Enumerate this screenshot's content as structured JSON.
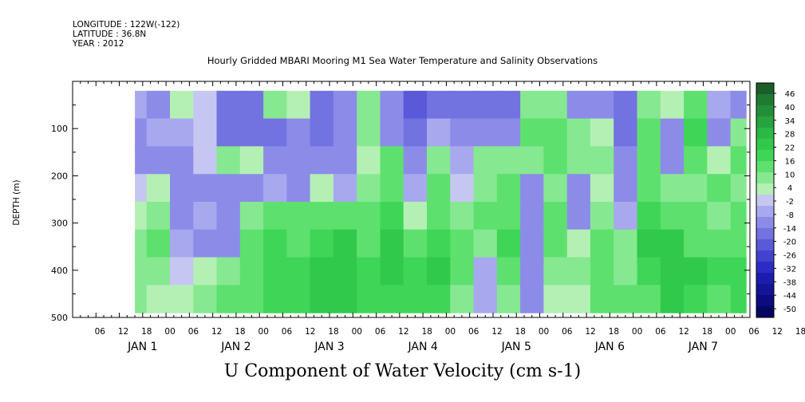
{
  "header": {
    "longitude": "LONGITUDE : 122W(-122)",
    "latitude": "LATITUDE : 36.8N",
    "year": "YEAR : 2012"
  },
  "chart_data": {
    "type": "heatmap",
    "title": "Hourly Gridded MBARI Mooring M1 Sea Water Temperature and Salinity Observations",
    "caption": "U Component of Water Velocity (cm s-1)",
    "ylabel": "DEPTH (m)",
    "ylim": [
      500,
      0
    ],
    "y_inverted": true,
    "y_ticks": [
      100,
      200,
      300,
      400,
      500
    ],
    "x_hour_ticks": [
      "06",
      "12",
      "18",
      "00",
      "06",
      "12",
      "18",
      "00",
      "06",
      "12",
      "18",
      "00",
      "06",
      "12",
      "18",
      "00",
      "06",
      "12",
      "18",
      "00",
      "06",
      "12",
      "18",
      "00",
      "06",
      "12",
      "18",
      "00",
      "06",
      "12",
      "18"
    ],
    "x_day_labels": [
      "JAN  1",
      "JAN  2",
      "JAN  3",
      "JAN  4",
      "JAN  5",
      "JAN  6",
      "JAN  7"
    ],
    "colorbar": {
      "labels": [
        "46",
        "40",
        "34",
        "28",
        "22",
        "16",
        "10",
        "4",
        "-2",
        "-8",
        "-14",
        "-20",
        "-26",
        "-32",
        "-38",
        "-44",
        "-50"
      ],
      "range": [
        -50,
        50
      ],
      "colors": [
        "#1a5e2a",
        "#1f7a32",
        "#238e39",
        "#27a33f",
        "#2bb845",
        "#31c94b",
        "#3fd658",
        "#5ee06f",
        "#86e891",
        "#b4f0b4",
        "#c6c6f2",
        "#a8a8ee",
        "#8c8ce8",
        "#7272e0",
        "#5a5ad8",
        "#4242cf",
        "#2c2cc4",
        "#1c1cae",
        "#141496",
        "#0c0c7e",
        "#060660"
      ]
    },
    "data_extent": {
      "start_day_hour": [
        1,
        10
      ],
      "end_day_hour": [
        7,
        23
      ],
      "depth_range": [
        20,
        490
      ]
    },
    "profiles": [
      {
        "hour": 10,
        "u": [
          -6,
          -8,
          -10,
          2,
          6,
          8,
          10,
          8
        ]
      },
      {
        "hour": 16,
        "u": [
          -10,
          -6,
          -8,
          4,
          10,
          12,
          10,
          6
        ]
      },
      {
        "hour": 22,
        "u": [
          4,
          -4,
          -10,
          -8,
          -10,
          -6,
          2,
          4
        ]
      },
      {
        "hour": 28,
        "u": [
          2,
          2,
          -2,
          -8,
          -6,
          -10,
          6,
          8
        ]
      },
      {
        "hour": 34,
        "u": [
          -14,
          -14,
          10,
          -8,
          -8,
          -8,
          10,
          12
        ]
      },
      {
        "hour": 40,
        "u": [
          -16,
          -12,
          6,
          -10,
          10,
          12,
          14,
          16
        ]
      },
      {
        "hour": 46,
        "u": [
          8,
          -12,
          -8,
          -6,
          16,
          18,
          20,
          18
        ]
      },
      {
        "hour": 52,
        "u": [
          6,
          -8,
          -10,
          -10,
          12,
          16,
          18,
          20
        ]
      },
      {
        "hour": 58,
        "u": [
          -12,
          -14,
          -10,
          6,
          14,
          20,
          22,
          24
        ]
      },
      {
        "hour": 64,
        "u": [
          -8,
          -10,
          -8,
          -6,
          16,
          22,
          24,
          24
        ]
      },
      {
        "hour": 70,
        "u": [
          8,
          10,
          6,
          8,
          12,
          16,
          20,
          18
        ]
      },
      {
        "hour": 76,
        "u": [
          -10,
          -10,
          12,
          16,
          20,
          24,
          22,
          18
        ]
      },
      {
        "hour": 82,
        "u": [
          -18,
          -12,
          -8,
          -6,
          6,
          16,
          20,
          18
        ]
      },
      {
        "hour": 88,
        "u": [
          -14,
          -6,
          8,
          12,
          14,
          18,
          22,
          20
        ]
      },
      {
        "hour": 94,
        "u": [
          -12,
          -10,
          -6,
          2,
          8,
          14,
          16,
          10
        ]
      },
      {
        "hour": 100,
        "u": [
          -12,
          -8,
          8,
          10,
          12,
          8,
          -4,
          -6
        ]
      },
      {
        "hour": 106,
        "u": [
          -12,
          -10,
          10,
          14,
          16,
          20,
          14,
          8
        ]
      },
      {
        "hour": 112,
        "u": [
          8,
          12,
          10,
          -8,
          -10,
          -8,
          -10,
          -8
        ]
      },
      {
        "hour": 118,
        "u": [
          10,
          16,
          12,
          10,
          12,
          14,
          10,
          6
        ]
      },
      {
        "hour": 124,
        "u": [
          -8,
          8,
          10,
          -10,
          -8,
          6,
          8,
          6
        ]
      },
      {
        "hour": 130,
        "u": [
          -10,
          6,
          8,
          6,
          10,
          12,
          16,
          14
        ]
      },
      {
        "hour": 136,
        "u": [
          -14,
          -12,
          -10,
          -8,
          -6,
          8,
          10,
          12
        ]
      },
      {
        "hour": 142,
        "u": [
          10,
          12,
          16,
          14,
          18,
          22,
          20,
          16
        ]
      },
      {
        "hour": 148,
        "u": [
          6,
          -8,
          -10,
          8,
          16,
          24,
          26,
          22
        ]
      },
      {
        "hour": 154,
        "u": [
          14,
          20,
          16,
          10,
          12,
          16,
          22,
          20
        ]
      },
      {
        "hour": 160,
        "u": [
          -6,
          -8,
          6,
          12,
          10,
          14,
          18,
          16
        ]
      },
      {
        "hour": 166,
        "u": [
          -10,
          8,
          12,
          10,
          14,
          16,
          20,
          18
        ]
      }
    ]
  }
}
